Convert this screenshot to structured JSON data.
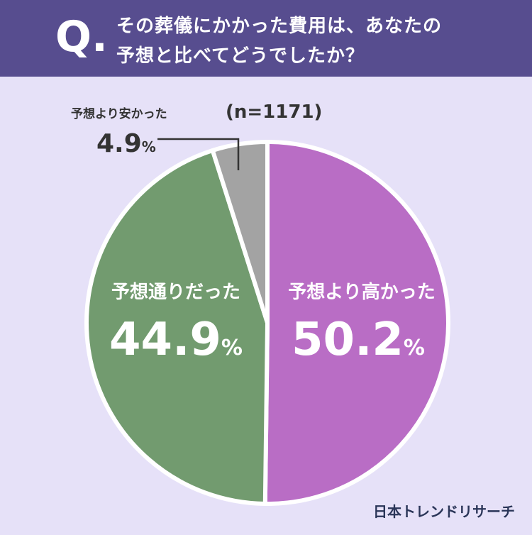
{
  "header": {
    "q_mark": "Q.",
    "question_line1": "その葬儀にかかった費用は、あなたの",
    "question_line2": "予想と比べてどうでしたか？"
  },
  "chart_data": {
    "type": "pie",
    "sample_size_label": "(n=1171)",
    "slices": [
      {
        "label": "予想より高かった",
        "value": 50.2,
        "color": "#b96dc5"
      },
      {
        "label": "予想通りだった",
        "value": 44.9,
        "color": "#729b6f"
      },
      {
        "label": "予想より安かった",
        "value": 4.9,
        "color": "#a3a3a3"
      }
    ],
    "value_suffix": "%",
    "start_angle": "12 o'clock",
    "direction": "clockwise"
  },
  "footer": {
    "brand": "日本トレンドリサーチ"
  }
}
